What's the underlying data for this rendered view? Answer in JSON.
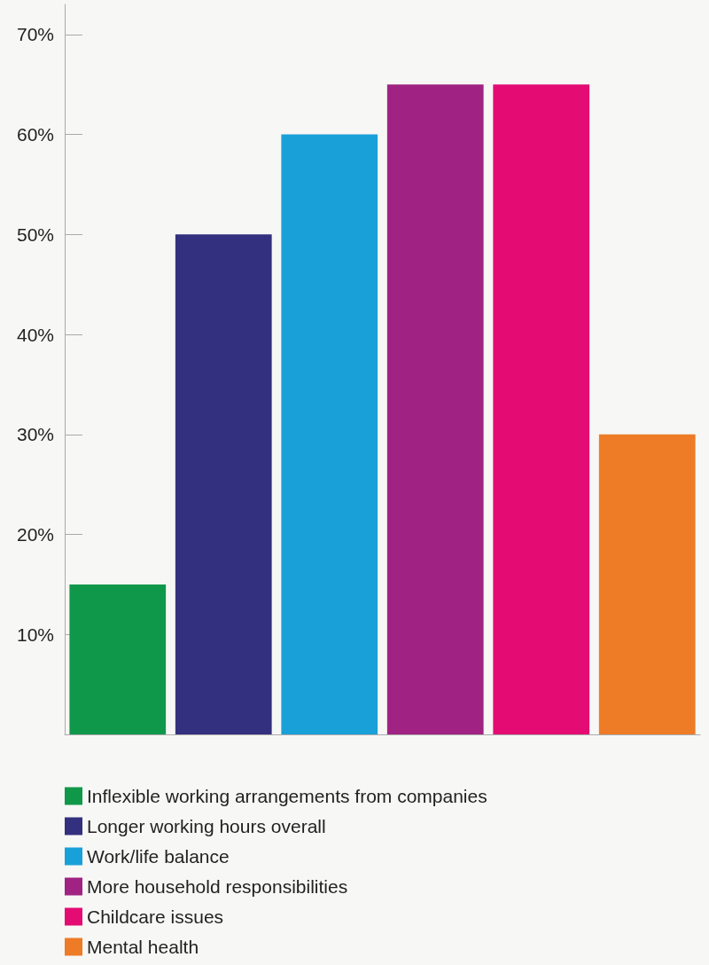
{
  "chart_data": {
    "type": "bar",
    "categories": [
      null,
      null,
      null,
      null,
      null,
      null
    ],
    "series": [
      {
        "name": "Inflexible working arrangements from companies",
        "color": "#10984a",
        "values": [
          15,
          null,
          null,
          null,
          null,
          null
        ]
      },
      {
        "name": "Longer working hours overall",
        "color": "#33307f",
        "values": [
          null,
          50,
          null,
          null,
          null,
          null
        ]
      },
      {
        "name": "Work/life balance",
        "color": "#19a0d9",
        "values": [
          null,
          null,
          60,
          null,
          null,
          null
        ]
      },
      {
        "name": "More household responsibilities",
        "color": "#a02383",
        "values": [
          null,
          null,
          null,
          65,
          null,
          null
        ]
      },
      {
        "name": "Childcare issues",
        "color": "#e40b73",
        "values": [
          null,
          null,
          null,
          null,
          65,
          null
        ]
      },
      {
        "name": "Mental health",
        "color": "#ee7b25",
        "values": [
          null,
          null,
          null,
          null,
          null,
          30
        ]
      }
    ],
    "ylim": [
      0,
      73
    ],
    "yticks": [
      {
        "value": 10,
        "label": "10%"
      },
      {
        "value": 20,
        "label": "20%"
      },
      {
        "value": 30,
        "label": "30%"
      },
      {
        "value": 40,
        "label": "40%"
      },
      {
        "value": 50,
        "label": "50%"
      },
      {
        "value": 60,
        "label": "60%"
      },
      {
        "value": 70,
        "label": "70%"
      }
    ],
    "grid": false,
    "legend": "bottom"
  }
}
